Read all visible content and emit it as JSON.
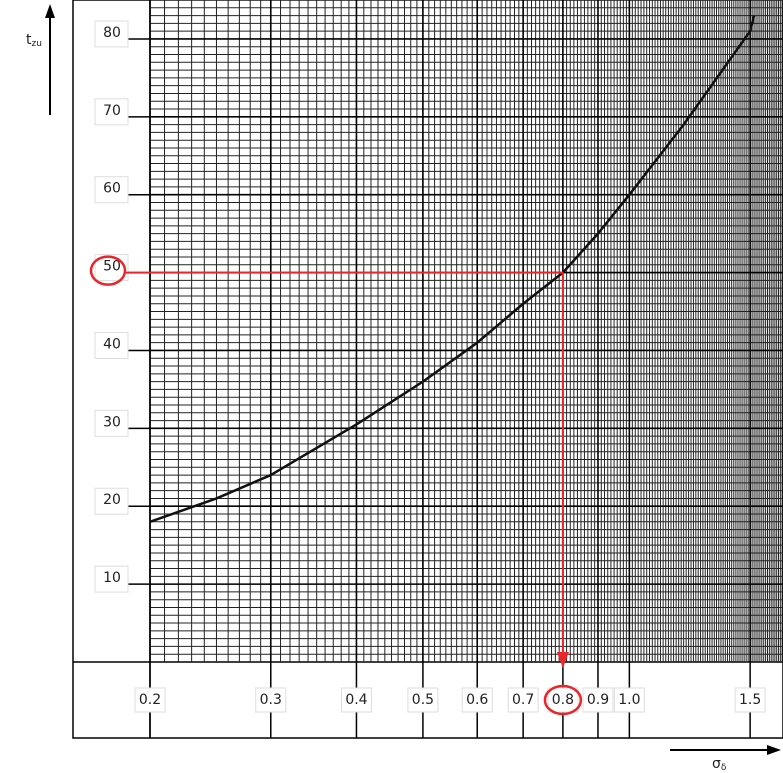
{
  "chart_data": {
    "type": "line",
    "ylabel": {
      "text": "t",
      "subscript": "zu"
    },
    "xlabel": {
      "text": "σ",
      "subscript": "δ"
    },
    "log_x": true,
    "xlim": [
      0.2,
      1.675
    ],
    "ylim": [
      0,
      85
    ],
    "xticks": [
      0.2,
      0.3,
      0.4,
      0.5,
      0.6,
      0.7,
      0.8,
      0.9,
      {
        "value": 1.0,
        "label": "1.0"
      },
      1.5
    ],
    "yticks": [
      10,
      20,
      30,
      40,
      50,
      60,
      70,
      80
    ],
    "grid": true,
    "xminor_step": 0.01,
    "yminor_step": 1,
    "x": [
      0.2,
      0.25,
      0.3,
      0.4,
      0.5,
      0.6,
      0.7,
      0.8,
      0.9,
      1.0,
      1.2,
      1.5,
      1.52
    ],
    "series": [
      {
        "color": "#111111",
        "values": [
          18,
          21,
          24,
          30.5,
          36,
          41,
          46,
          50,
          55,
          60,
          69,
          81,
          83
        ]
      }
    ],
    "annotation": {
      "x": 0.8,
      "y": 50,
      "color": "#e8262b"
    }
  }
}
